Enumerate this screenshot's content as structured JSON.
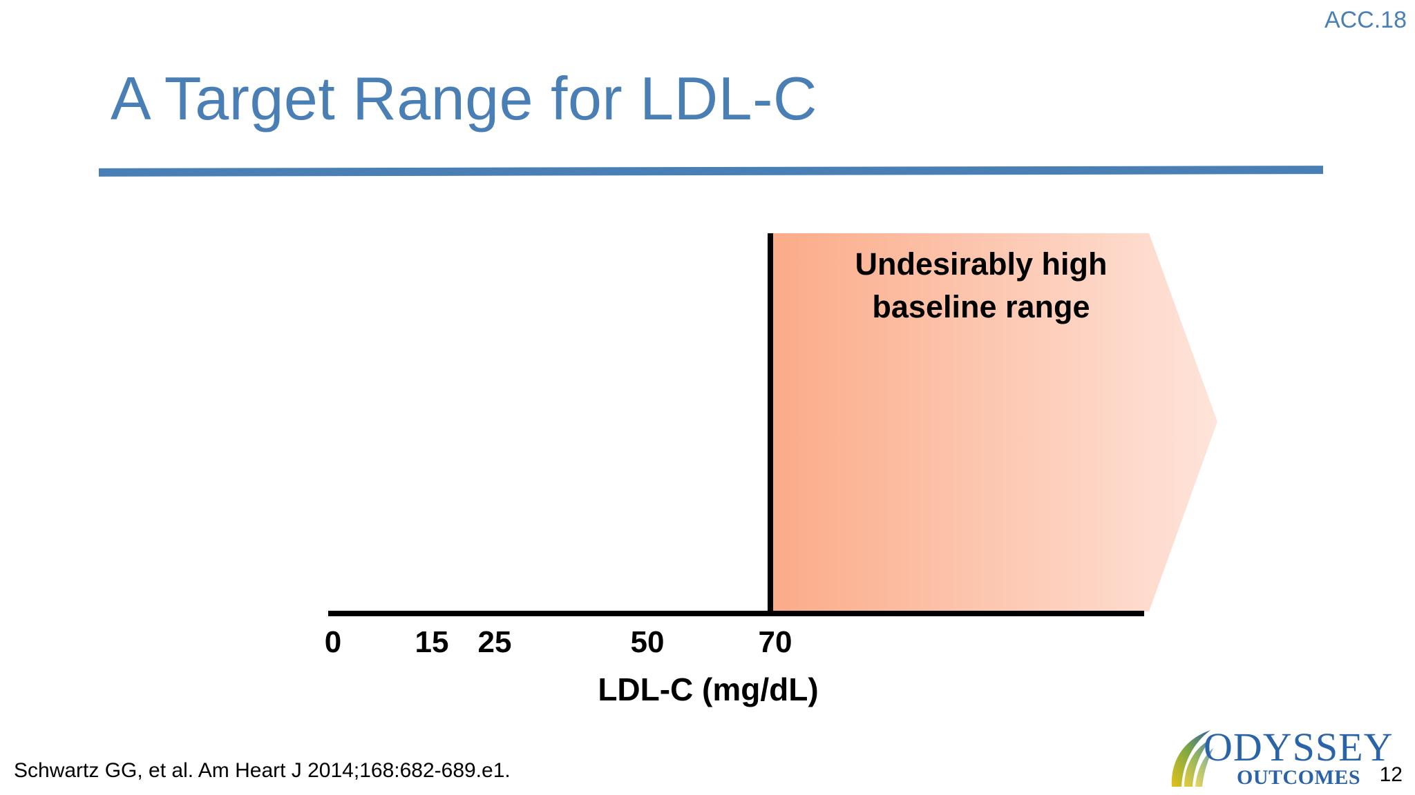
{
  "header": {
    "conference_tag": "ACC.18",
    "title": "A Target Range for LDL-C"
  },
  "figure": {
    "band_label_line1": "Undesirably high",
    "band_label_line2": "baseline range",
    "axis_title": "LDL-C (mg/dL)",
    "ticks": [
      "0",
      "15",
      "25",
      "50",
      "70"
    ],
    "band_start_value": 70,
    "band_color_start": "#fbab88",
    "band_color_end": "#fee4da"
  },
  "footer": {
    "citation": "Schwartz GG, et al. Am Heart J 2014;168:682-689.e1.",
    "logo_line1": "ODYSSEY",
    "logo_line2": "OUTCOMES",
    "page_number": "12"
  },
  "colors": {
    "title_blue": "#4a7fb5",
    "logo_blue": "#2a63a8"
  }
}
